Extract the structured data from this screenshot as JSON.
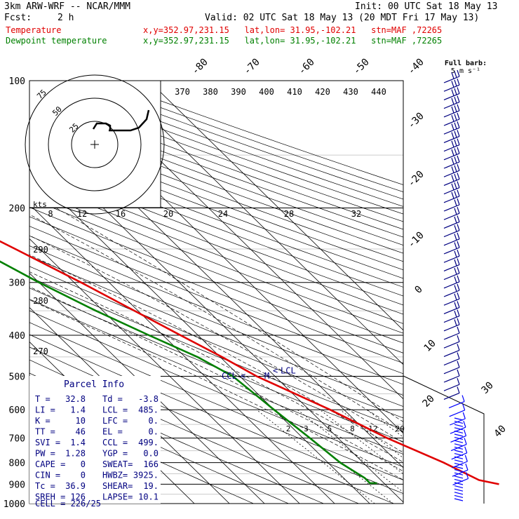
{
  "header": {
    "model": "3km ARW-WRF -- NCAR/MMM",
    "init": "Init: 00 UTC Sat 18 May 13",
    "fcst_label": "Fcst:",
    "fcst_value": "2 h",
    "valid": "Valid: 02 UTC Sat 18 May 13 (20 MDT Fri 17 May 13)",
    "series_lines": [
      {
        "name": "Temperature",
        "info": "x,y=352.97,231.15   lat,lon= 31.95,-102.21   stn=MAF ,72265",
        "color": "#e00000"
      },
      {
        "name": "Dewpoint temperature",
        "info": "x,y=352.97,231.15   lat,lon= 31.95,-102.21   stn=MAF ,72265",
        "color": "#008000"
      }
    ]
  },
  "chart_data": {
    "type": "line",
    "chart_kind": "skew-T log-p diagram",
    "y_axis": {
      "scale": "log",
      "unit": "hPa",
      "range": [
        1000,
        100
      ],
      "ticks": [
        100,
        200,
        300,
        400,
        500,
        600,
        700,
        800,
        900,
        1000
      ]
    },
    "isotherm_labels": [
      "-80",
      "-70",
      "-60",
      "-50",
      "-40",
      "-30",
      "-20",
      "-10",
      "0",
      "10",
      "20",
      "30",
      "40"
    ],
    "theta_labels": [
      "370",
      "380",
      "390",
      "400",
      "410",
      "420",
      "430",
      "440"
    ],
    "theta_side_labels": [
      "290",
      "280",
      "270"
    ],
    "mixing_ratio_labels": [
      "2",
      "3",
      "5",
      "8",
      "12",
      "20"
    ],
    "hodograph": {
      "rings": [
        "25",
        "50",
        "75"
      ],
      "unit_label": "kts",
      "speed_ticks": [
        "8",
        "12",
        "16",
        "20",
        "24",
        "28",
        "32"
      ]
    },
    "wind_key": {
      "line1": "Full barb:",
      "line2": "5 m s⁻¹"
    },
    "series": [
      {
        "name": "Temperature",
        "color": "#e00000",
        "points": [
          [
            900,
            32.5
          ],
          [
            880,
            28.0
          ],
          [
            800,
            23.0
          ],
          [
            700,
            14.0
          ],
          [
            600,
            6.0
          ],
          [
            500,
            -5.2
          ],
          [
            450,
            -9.5
          ],
          [
            400,
            -15.0
          ],
          [
            350,
            -21.0
          ],
          [
            300,
            -28.0
          ],
          [
            250,
            -37.0
          ],
          [
            200,
            -48.5
          ],
          [
            180,
            -50.5
          ],
          [
            150,
            -51.0
          ],
          [
            120,
            -50.5
          ],
          [
            100,
            -52.0
          ]
        ]
      },
      {
        "name": "Dewpoint temperature",
        "color": "#008000",
        "points": [
          [
            895,
            -2.0
          ],
          [
            895,
            -4.0
          ],
          [
            870,
            -4.0
          ],
          [
            800,
            -6.5
          ],
          [
            700,
            -8.0
          ],
          [
            600,
            -10.0
          ],
          [
            500,
            -12.0
          ],
          [
            450,
            -16.5
          ],
          [
            400,
            -24.0
          ],
          [
            350,
            -32.0
          ],
          [
            300,
            -40.0
          ],
          [
            250,
            -48.0
          ],
          [
            200,
            -58.0
          ],
          [
            160,
            -68.0
          ],
          [
            130,
            -78.0
          ],
          [
            115,
            -80.0
          ],
          [
            100,
            -80.0
          ]
        ]
      }
    ],
    "level_markers": [
      {
        "label": "CCL",
        "pressure": 499
      },
      {
        "label": "M",
        "pressure": 499
      },
      {
        "label": "LCL",
        "pressure": 485
      }
    ],
    "parcel_info": {
      "title": "Parcel Info",
      "rows": [
        [
          "T  =",
          "32.8",
          "Td =",
          "-3.8"
        ],
        [
          "LI =",
          "1.4",
          "LCL =",
          "485."
        ],
        [
          "K  =",
          "10",
          "LFC =",
          "0."
        ],
        [
          "TT =",
          "46",
          "EL  =",
          "0."
        ],
        [
          "SVI =",
          "1.4",
          "CCL =",
          "499."
        ],
        [
          "PW =",
          "1.28",
          "YGP =",
          "0.0"
        ],
        [
          "CAPE =",
          "0",
          "SWEAT=",
          "166"
        ],
        [
          "CIN =",
          "0",
          "HWBZ=",
          "3925."
        ],
        [
          "Tc =",
          "36.9",
          "SHEAR=",
          "19."
        ],
        [
          "SREH =",
          "126",
          "LAPSE=",
          "10.1"
        ]
      ],
      "cell": "CELL = 226/25"
    },
    "colors": {
      "temperature": "#e00000",
      "dewpoint": "#008000",
      "wind": "#000080",
      "info": "#000080",
      "grid": "#000000"
    }
  }
}
